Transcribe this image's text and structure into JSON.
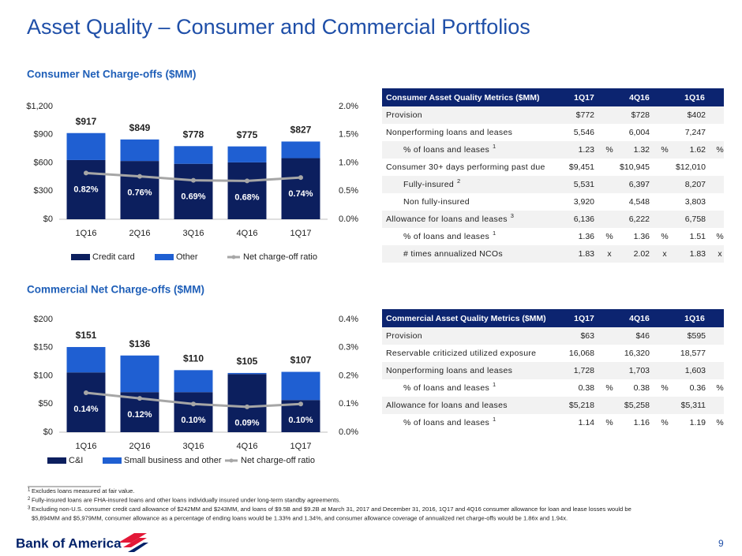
{
  "slide": {
    "title": "Asset Quality – Consumer and Commercial Portfolios",
    "page": "9",
    "logo": "Bank of America"
  },
  "chart_data": [
    {
      "type": "bar",
      "title": "Consumer Net Charge-offs ($MM)",
      "categories": [
        "1Q16",
        "2Q16",
        "3Q16",
        "4Q16",
        "1Q17"
      ],
      "series": [
        {
          "name": "Credit card",
          "color": "#0c1f5e",
          "values": [
            630,
            620,
            590,
            605,
            650
          ]
        },
        {
          "name": "Other",
          "color": "#1f5fd2",
          "values": [
            287,
            229,
            188,
            170,
            177
          ]
        },
        {
          "name": "Net charge-off ratio",
          "color": "#a6a6a6",
          "axis": "y2",
          "values": [
            0.82,
            0.76,
            0.69,
            0.68,
            0.74
          ],
          "value_labels": [
            "0.82%",
            "0.76%",
            "0.69%",
            "0.68%",
            "0.74%"
          ]
        }
      ],
      "totals": {
        "values": [
          917,
          849,
          778,
          775,
          827
        ],
        "value_labels": [
          "$917",
          "$849",
          "$778",
          "$775",
          "$827"
        ]
      },
      "ylim": [
        0,
        1200
      ],
      "yticks": [
        {
          "value": 0,
          "label": "$0"
        },
        {
          "value": 300,
          "label": "$300"
        },
        {
          "value": 600,
          "label": "$600"
        },
        {
          "value": 900,
          "label": "$900"
        },
        {
          "value": 1200,
          "label": "$1,200"
        }
      ],
      "y2lim": [
        0,
        2.0
      ],
      "y2ticks": [
        {
          "value": 0,
          "label": "0.0%"
        },
        {
          "value": 0.5,
          "label": "0.5%"
        },
        {
          "value": 1.0,
          "label": "1.0%"
        },
        {
          "value": 1.5,
          "label": "1.5%"
        },
        {
          "value": 2.0,
          "label": "2.0%"
        }
      ],
      "grid": false,
      "legend": "bottom"
    },
    {
      "type": "bar",
      "title": "Commercial Net Charge-offs ($MM)",
      "categories": [
        "1Q16",
        "2Q16",
        "3Q16",
        "4Q16",
        "1Q17"
      ],
      "series": [
        {
          "name": "C&I",
          "color": "#0c1f5e",
          "values": [
            106,
            71,
            71,
            103,
            57
          ]
        },
        {
          "name": "Small business and other",
          "color": "#1f5fd2",
          "values": [
            45,
            65,
            39,
            2,
            50
          ]
        },
        {
          "name": "Net charge-off ratio",
          "color": "#a6a6a6",
          "axis": "y2",
          "values": [
            0.14,
            0.12,
            0.1,
            0.09,
            0.1
          ],
          "value_labels": [
            "0.14%",
            "0.12%",
            "0.10%",
            "0.09%",
            "0.10%"
          ]
        }
      ],
      "totals": {
        "values": [
          151,
          136,
          110,
          105,
          107
        ],
        "value_labels": [
          "$151",
          "$136",
          "$110",
          "$105",
          "$107"
        ]
      },
      "ylim": [
        0,
        200
      ],
      "yticks": [
        {
          "value": 0,
          "label": "$0"
        },
        {
          "value": 50,
          "label": "$50"
        },
        {
          "value": 100,
          "label": "$100"
        },
        {
          "value": 150,
          "label": "$150"
        },
        {
          "value": 200,
          "label": "$200"
        }
      ],
      "y2lim": [
        0,
        0.4
      ],
      "y2ticks": [
        {
          "value": 0,
          "label": "0.0%"
        },
        {
          "value": 0.1,
          "label": "0.1%"
        },
        {
          "value": 0.2,
          "label": "0.2%"
        },
        {
          "value": 0.3,
          "label": "0.3%"
        },
        {
          "value": 0.4,
          "label": "0.4%"
        }
      ],
      "grid": false,
      "legend": "bottom"
    }
  ],
  "tables": [
    {
      "title": "Consumer Asset Quality Metrics ($MM)",
      "columns": [
        "1Q17",
        "4Q16",
        "1Q16"
      ],
      "rows": [
        {
          "label": "Provision",
          "values": [
            "$772",
            "$728",
            "$402"
          ]
        },
        {
          "label": "Nonperforming loans and leases",
          "values": [
            "5,546",
            "6,004",
            "7,247"
          ],
          "sub_rows": [
            {
              "label": "% of loans and leases",
              "note": "1",
              "values": [
                "1.23",
                "1.32",
                "1.62"
              ],
              "unit": "%"
            }
          ]
        },
        {
          "label": "Consumer 30+ days performing past due",
          "values": [
            "$9,451",
            "$10,945",
            "$12,010"
          ],
          "sub_rows": [
            {
              "label": "Fully-insured",
              "note": "2",
              "values": [
                "5,531",
                "6,397",
                "8,207"
              ]
            },
            {
              "label": "Non fully-insured",
              "values": [
                "3,920",
                "4,548",
                "3,803"
              ]
            }
          ]
        },
        {
          "label": "Allowance for loans and leases",
          "note": "3",
          "values": [
            "6,136",
            "6,222",
            "6,758"
          ],
          "sub_rows": [
            {
              "label": "% of loans and leases",
              "note": "1",
              "values": [
                "1.36",
                "1.36",
                "1.51"
              ],
              "unit": "%"
            },
            {
              "label": "# times annualized NCOs",
              "values": [
                "1.83",
                "2.02",
                "1.83"
              ],
              "unit": "x"
            }
          ]
        }
      ]
    },
    {
      "title": "Commercial Asset Quality Metrics ($MM)",
      "columns": [
        "1Q17",
        "4Q16",
        "1Q16"
      ],
      "rows": [
        {
          "label": "Provision",
          "values": [
            "$63",
            "$46",
            "$595"
          ]
        },
        {
          "label": "Reservable criticized utilized exposure",
          "values": [
            "16,068",
            "16,320",
            "18,577"
          ]
        },
        {
          "label": "Nonperforming loans and leases",
          "values": [
            "1,728",
            "1,703",
            "1,603"
          ],
          "sub_rows": [
            {
              "label": "% of loans and leases",
              "note": "1",
              "values": [
                "0.38",
                "0.38",
                "0.36"
              ],
              "unit": "%"
            }
          ]
        },
        {
          "label": "Allowance for loans and leases",
          "values": [
            "$5,218",
            "$5,258",
            "$5,311"
          ],
          "sub_rows": [
            {
              "label": "% of loans and leases",
              "note": "1",
              "values": [
                "1.14",
                "1.16",
                "1.19"
              ],
              "unit": "%"
            }
          ]
        }
      ]
    }
  ],
  "footnotes": [
    {
      "mark": "1",
      "lines": [
        "Excludes loans measured at fair value."
      ]
    },
    {
      "mark": "2",
      "lines": [
        "Fully-insured loans are FHA-insured loans and other loans individually insured under long-term standby agreements."
      ]
    },
    {
      "mark": "3",
      "lines": [
        "Excluding non-U.S. consumer credit card allowance of $242MM and $243MM, and loans of $9.5B and $9.2B at March 31, 2017 and December 31, 2016, 1Q17 and 4Q16 consumer allowance for loan and lease losses would be",
        "$5,894MM and $5,979MM, consumer allowance as a percentage of ending loans would be 1.33% and 1.34%, and consumer allowance coverage of annualized net charge-offs would be 1.86x and 1.94x."
      ]
    }
  ]
}
